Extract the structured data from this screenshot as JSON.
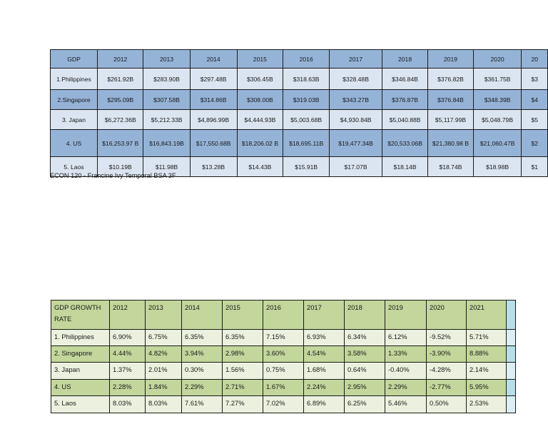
{
  "gdp_table": {
    "headers": [
      "GDP",
      "2012",
      "2013",
      "2014",
      "2015",
      "2016",
      "2017",
      "2018",
      "2019",
      "2020",
      "20"
    ],
    "rows": [
      {
        "country": "1.Philippines",
        "values": [
          "$261.92B",
          "$283.90B",
          "$297.48B",
          "$306.45B",
          "$318.63B",
          "$328.48B",
          "$346.84B",
          "$376.82B",
          "$361.75B",
          "$3"
        ]
      },
      {
        "country": "2.Singapore",
        "values": [
          "$295.09B",
          "$307.58B",
          "$314.86B",
          "$308.00B",
          "$319.03B",
          "$343.27B",
          "$376.87B",
          "$376.84B",
          "$348.39B",
          "$4"
        ]
      },
      {
        "country": "3. Japan",
        "values": [
          "$6,272.36B",
          "$5,212.33B",
          "$4,896.99B",
          "$4,444.93B",
          "$5,003.68B",
          "$4,930.84B",
          "$5,040.88B",
          "$5,117.99B",
          "$5,048.79B",
          "$5"
        ]
      },
      {
        "country": "4. US",
        "values": [
          "$16,253.97 B",
          "$16,843.19B",
          "$17,550.68B",
          "$18,206.02 B",
          "$18,695.11B",
          "$19,477.34B",
          "$20,533.06B",
          "$21,380.98 B",
          "$21,060.47B",
          "$2"
        ]
      },
      {
        "country": "5. Laos",
        "values": [
          "$10.19B",
          "$11.98B",
          "$13.28B",
          "$14.43B",
          "$15.91B",
          "$17.07B",
          "$18.14B",
          "$18.74B",
          "$18.98B",
          "$1"
        ]
      }
    ]
  },
  "caption": "ECON 120 - Francine Ivy Temporal BSA 3F",
  "growth_table": {
    "headers": [
      "GDP GROWTH RATE",
      "2012",
      "2013",
      "2014",
      "2015",
      "2016",
      "2017",
      "2018",
      "2019",
      "2020",
      "2021",
      ""
    ],
    "rows": [
      {
        "country": "1. Philippines",
        "values": [
          "6.90%",
          "6.75%",
          "6.35%",
          "6.35%",
          "7.15%",
          "6.93%",
          "6.34%",
          "6.12%",
          "-9.52%",
          "5.71%",
          ""
        ]
      },
      {
        "country": "2. Singapore",
        "values": [
          "4.44%",
          "4.82%",
          "3.94%",
          "2.98%",
          "3.60%",
          "4.54%",
          "3.58%",
          "1.33%",
          "-3.90%",
          "8.88%",
          ""
        ]
      },
      {
        "country": "3. Japan",
        "values": [
          "1.37%",
          "2.01%",
          "0.30%",
          "1.56%",
          "0.75%",
          "1.68%",
          "0.64%",
          "-0.40%",
          "-4.28%",
          "2.14%",
          ""
        ]
      },
      {
        "country": "4. US",
        "values": [
          "2.28%",
          "1.84%",
          "2.29%",
          "2.71%",
          "1.67%",
          "2.24%",
          "2.95%",
          "2.29%",
          "-2.77%",
          "5.95%",
          ""
        ]
      },
      {
        "country": "5. Laos",
        "values": [
          "8.03%",
          "8.03%",
          "7.61%",
          "7.27%",
          "7.02%",
          "6.89%",
          "6.25%",
          "5.46%",
          "0.50%",
          "2.53%",
          ""
        ]
      }
    ]
  }
}
